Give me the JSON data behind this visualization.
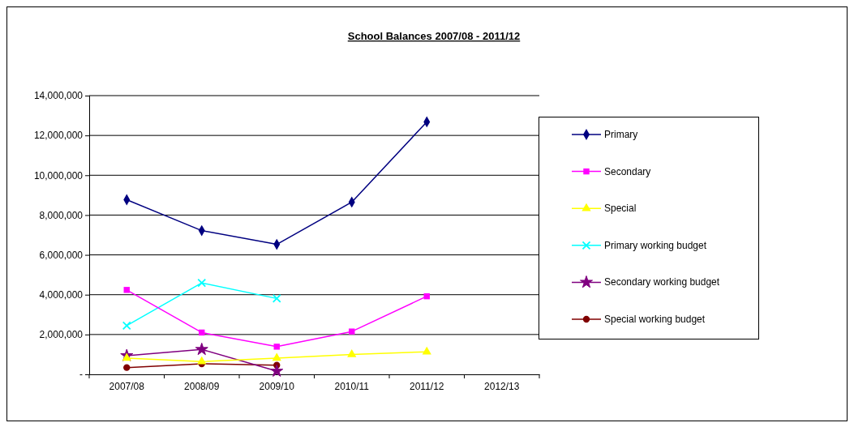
{
  "chart_data": {
    "type": "line",
    "title": "School Balances 2007/08 - 2011/12",
    "categories": [
      "2007/08",
      "2008/09",
      "2009/10",
      "2010/11",
      "2011/12",
      "2012/13"
    ],
    "series": [
      {
        "name": "Primary",
        "color": "#000080",
        "marker": "diamond",
        "values": [
          8770000,
          7220000,
          6530000,
          8650000,
          12680000,
          null
        ]
      },
      {
        "name": "Secondary",
        "color": "#ff00ff",
        "marker": "square",
        "values": [
          4240000,
          2100000,
          1390000,
          2150000,
          3920000,
          null
        ]
      },
      {
        "name": "Special",
        "color": "#ffff00",
        "marker": "triangle",
        "values": [
          810000,
          640000,
          810000,
          1000000,
          1130000,
          null
        ]
      },
      {
        "name": "Primary working budget",
        "color": "#00ffff",
        "marker": "cross",
        "values": [
          2450000,
          4590000,
          3810000,
          null,
          null,
          null
        ]
      },
      {
        "name": "Secondary working budget",
        "color": "#800080",
        "marker": "star",
        "values": [
          940000,
          1250000,
          160000,
          null,
          null,
          null
        ]
      },
      {
        "name": "Special working budget",
        "color": "#800000",
        "marker": "circle",
        "values": [
          340000,
          530000,
          460000,
          null,
          null,
          null
        ]
      }
    ],
    "ylim": [
      0,
      14000000
    ],
    "yticks": [
      {
        "value": 0,
        "label": "-"
      },
      {
        "value": 2000000,
        "label": "2,000,000"
      },
      {
        "value": 4000000,
        "label": "4,000,000"
      },
      {
        "value": 6000000,
        "label": "6,000,000"
      },
      {
        "value": 8000000,
        "label": "8,000,000"
      },
      {
        "value": 10000000,
        "label": "10,000,000"
      },
      {
        "value": 12000000,
        "label": "12,000,000"
      },
      {
        "value": 14000000,
        "label": "14,000,000"
      }
    ],
    "grid": "y",
    "legend": "right",
    "line_style": "solid"
  }
}
